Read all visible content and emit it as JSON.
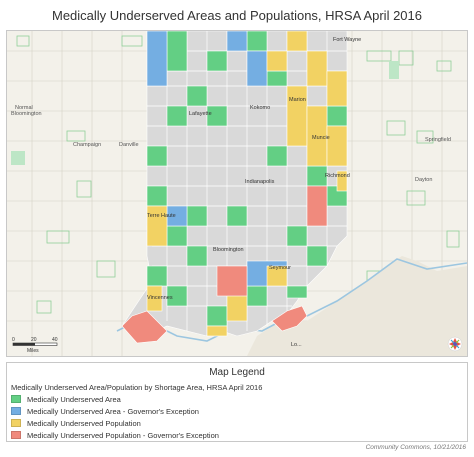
{
  "title": "Medically Underserved Areas and Populations, HRSA April 2016",
  "map": {
    "state_labels": {
      "illinois_north": "Normal\nBloomington",
      "champaign": "Champaign",
      "danville": "Danville",
      "springfield": "Springfield",
      "dayton": "Dayton"
    },
    "cities": {
      "fort_wayne": "Fort Wayne",
      "lafayette": "Lafayette",
      "kokomo": "Kokomo",
      "marion": "Marion",
      "muncie": "Muncie",
      "indianapolis": "Indianapolis",
      "richmond": "Richmond",
      "terre_haute": "Terre Haute",
      "bloomington": "Bloomington",
      "seymour": "Seymour",
      "vincennes": "Vincennes",
      "louisville": "Lo..."
    },
    "scale": {
      "ticks": [
        "0",
        "20",
        "40"
      ],
      "unit": "Miles"
    }
  },
  "legend": {
    "title": "Map Legend",
    "subtitle": "Medically Underserved Area/Population by Shortage Area, HRSA April 2016",
    "items": [
      {
        "label": "Medically Underserved Area",
        "color": "#63cf84"
      },
      {
        "label": "Medically Underserved Area - Governor's Exception",
        "color": "#74aee2"
      },
      {
        "label": "Medically Underserved Population",
        "color": "#f2d263"
      },
      {
        "label": "Medically Underserved Population - Governor's Exception",
        "color": "#f08a7d"
      }
    ]
  },
  "credit": "Community Commons, 10/21/2016"
}
